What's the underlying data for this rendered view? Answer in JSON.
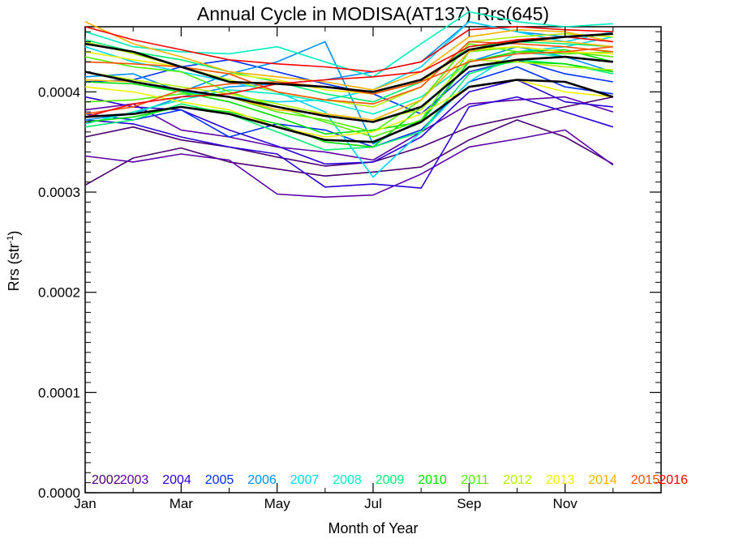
{
  "chart_data": {
    "type": "line",
    "title": "Annual Cycle in MODISA(AT137) Rrs(645)",
    "xlabel": "Month of Year",
    "ylabel_main": "Rrs (str",
    "ylabel_sup": "-1",
    "ylabel_close": ")",
    "xlim": [
      1,
      13
    ],
    "ylim": [
      0.0,
      0.000465
    ],
    "x_ticks": [
      {
        "value": 1,
        "label": "Jan"
      },
      {
        "value": 3,
        "label": "Mar"
      },
      {
        "value": 5,
        "label": "May"
      },
      {
        "value": 7,
        "label": "Jul"
      },
      {
        "value": 9,
        "label": "Sep"
      },
      {
        "value": 11,
        "label": "Nov"
      }
    ],
    "y_ticks": [
      {
        "value": 0.0,
        "label": "0.0000"
      },
      {
        "value": 0.0001,
        "label": "0.0001"
      },
      {
        "value": 0.0002,
        "label": "0.0002"
      },
      {
        "value": 0.0003,
        "label": "0.0003"
      },
      {
        "value": 0.0004,
        "label": "0.0004"
      }
    ],
    "legend": [
      {
        "label": "2002",
        "color": "#4a0072"
      },
      {
        "label": "2003",
        "color": "#5b00a8"
      },
      {
        "label": "2004",
        "color": "#2a00d8"
      },
      {
        "label": "2005",
        "color": "#0030ff"
      },
      {
        "label": "2006",
        "color": "#0090ff"
      },
      {
        "label": "2007",
        "color": "#00d8ff"
      },
      {
        "label": "2008",
        "color": "#00f0c0"
      },
      {
        "label": "2009",
        "color": "#00f070"
      },
      {
        "label": "2010",
        "color": "#00e000"
      },
      {
        "label": "2011",
        "color": "#50f000"
      },
      {
        "label": "2012",
        "color": "#b0f000"
      },
      {
        "label": "2013",
        "color": "#f0f000"
      },
      {
        "label": "2014",
        "color": "#ffb000"
      },
      {
        "label": "2015",
        "color": "#ff5000"
      },
      {
        "label": "2016",
        "color": "#ff0000"
      }
    ],
    "series": [
      {
        "color": "#4a0072",
        "x": [
          1,
          2,
          3,
          4,
          5,
          6,
          7,
          8,
          9,
          10,
          11,
          12
        ],
        "values": [
          0.000307,
          0.000334,
          0.000344,
          0.00033,
          0.000323,
          0.000316,
          0.00032,
          0.000325,
          0.000352,
          0.000372,
          0.000355,
          0.000328
        ]
      },
      {
        "color": "#4a0072",
        "x": [
          1,
          2,
          3,
          4,
          5,
          6,
          7,
          8,
          9,
          10,
          11,
          12
        ],
        "values": [
          0.000355,
          0.000365,
          0.000352,
          0.000345,
          0.000335,
          0.000326,
          0.00033,
          0.000345,
          0.000365,
          0.000375,
          0.000385,
          0.000395
        ]
      },
      {
        "color": "#5b00a8",
        "x": [
          1,
          2,
          3,
          4,
          5,
          6,
          7,
          8,
          9,
          10,
          11,
          12
        ],
        "values": [
          0.000336,
          0.00033,
          0.000338,
          0.000332,
          0.000298,
          0.000295,
          0.000297,
          0.000318,
          0.000345,
          0.000353,
          0.000362,
          0.000327
        ]
      },
      {
        "color": "#5b00a8",
        "x": [
          1,
          2,
          3,
          4,
          5,
          6,
          7,
          8,
          9,
          10,
          11,
          12
        ],
        "values": [
          0.000382,
          0.000388,
          0.000362,
          0.000355,
          0.000345,
          0.00034,
          0.000332,
          0.00036,
          0.000388,
          0.000392,
          0.000395,
          0.00038
        ]
      },
      {
        "color": "#2a00d8",
        "x": [
          1,
          2,
          3,
          4,
          5,
          6,
          7,
          8,
          9,
          10,
          11,
          12
        ],
        "values": [
          0.000372,
          0.000368,
          0.000355,
          0.000345,
          0.000338,
          0.000305,
          0.000308,
          0.000304,
          0.000385,
          0.000395,
          0.00038,
          0.000365
        ]
      },
      {
        "color": "#2a00d8",
        "x": [
          1,
          2,
          3,
          4,
          5,
          6,
          7,
          8,
          9,
          10,
          11,
          12
        ],
        "values": [
          0.000395,
          0.000385,
          0.000382,
          0.000362,
          0.000346,
          0.000328,
          0.00033,
          0.000355,
          0.0004,
          0.000412,
          0.00039,
          0.000385
        ]
      },
      {
        "color": "#0030ff",
        "x": [
          1,
          2,
          3,
          4,
          5,
          6,
          7,
          8,
          9,
          10,
          11,
          12
        ],
        "values": [
          0.000378,
          0.000372,
          0.000382,
          0.000355,
          0.000368,
          0.000362,
          0.000345,
          0.000362,
          0.00041,
          0.000425,
          0.000405,
          0.000398
        ]
      },
      {
        "color": "#0030ff",
        "x": [
          1,
          2,
          3,
          4,
          5,
          6,
          7,
          8,
          9,
          10,
          11,
          12
        ],
        "values": [
          0.00041,
          0.000412,
          0.000425,
          0.000432,
          0.00042,
          0.000408,
          0.000398,
          0.000378,
          0.00042,
          0.000432,
          0.000418,
          0.00041
        ]
      },
      {
        "color": "#0090ff",
        "x": [
          1,
          2,
          3,
          4,
          5,
          6,
          7,
          8,
          9,
          10,
          11,
          12
        ],
        "values": [
          0.000415,
          0.000418,
          0.0004,
          0.000418,
          0.00043,
          0.00045,
          0.000348,
          0.000372,
          0.00043,
          0.000445,
          0.000435,
          0.00042
        ]
      },
      {
        "color": "#0090ff",
        "x": [
          1,
          2,
          3,
          4,
          5,
          6,
          7,
          8,
          9,
          10,
          11,
          12
        ],
        "values": [
          0.000372,
          0.000378,
          0.000395,
          0.000405,
          0.000408,
          0.000412,
          0.00042,
          0.00043,
          0.00047,
          0.00046,
          0.000455,
          0.00045
        ]
      },
      {
        "color": "#00d8ff",
        "x": [
          1,
          2,
          3,
          4,
          5,
          6,
          7,
          8,
          9,
          10,
          11,
          12
        ],
        "values": [
          0.000445,
          0.00043,
          0.00042,
          0.00041,
          0.0004,
          0.00038,
          0.000315,
          0.00036,
          0.00041,
          0.00044,
          0.000445,
          0.000455
        ]
      },
      {
        "color": "#00d8ff",
        "x": [
          1,
          2,
          3,
          4,
          5,
          6,
          7,
          8,
          9,
          10,
          11,
          12
        ],
        "values": [
          0.00042,
          0.00041,
          0.0004,
          0.000395,
          0.00039,
          0.000392,
          0.000402,
          0.000425,
          0.00047,
          0.00046,
          0.00045,
          0.00046
        ]
      },
      {
        "color": "#00f0c0",
        "x": [
          1,
          2,
          3,
          4,
          5,
          6,
          7,
          8,
          9,
          10,
          11,
          12
        ],
        "values": [
          0.00046,
          0.000445,
          0.00044,
          0.000438,
          0.000445,
          0.00043,
          0.000415,
          0.000448,
          0.00048,
          0.00047,
          0.000465,
          0.000468
        ]
      },
      {
        "color": "#00f0c0",
        "x": [
          1,
          2,
          3,
          4,
          5,
          6,
          7,
          8,
          9,
          10,
          11,
          12
        ],
        "values": [
          0.000368,
          0.00038,
          0.000392,
          0.000402,
          0.000398,
          0.00039,
          0.000378,
          0.000395,
          0.00043,
          0.00044,
          0.000435,
          0.00043
        ]
      },
      {
        "color": "#00f070",
        "x": [
          1,
          2,
          3,
          4,
          5,
          6,
          7,
          8,
          9,
          10,
          11,
          12
        ],
        "values": [
          0.000365,
          0.000372,
          0.000388,
          0.000378,
          0.00036,
          0.000342,
          0.000345,
          0.00036,
          0.000418,
          0.000432,
          0.000428,
          0.000418
        ]
      },
      {
        "color": "#00f070",
        "x": [
          1,
          2,
          3,
          4,
          5,
          6,
          7,
          8,
          9,
          10,
          11,
          12
        ],
        "values": [
          0.000452,
          0.00044,
          0.000432,
          0.00042,
          0.00041,
          0.000398,
          0.00039,
          0.00041,
          0.000445,
          0.00045,
          0.000448,
          0.000445
        ]
      },
      {
        "color": "#00e000",
        "x": [
          1,
          2,
          3,
          4,
          5,
          6,
          7,
          8,
          9,
          10,
          11,
          12
        ],
        "values": [
          0.00037,
          0.000375,
          0.000385,
          0.00038,
          0.000368,
          0.00035,
          0.000345,
          0.000385,
          0.000425,
          0.00043,
          0.000428,
          0.00042
        ]
      },
      {
        "color": "#00e000",
        "x": [
          1,
          2,
          3,
          4,
          5,
          6,
          7,
          8,
          9,
          10,
          11,
          12
        ],
        "values": [
          0.00041,
          0.000408,
          0.0004,
          0.00039,
          0.000375,
          0.000358,
          0.000362,
          0.00037,
          0.00043,
          0.00044,
          0.000442,
          0.00043
        ]
      },
      {
        "color": "#50f000",
        "x": [
          1,
          2,
          3,
          4,
          5,
          6,
          7,
          8,
          9,
          10,
          11,
          12
        ],
        "values": [
          0.000435,
          0.000425,
          0.00042,
          0.0004,
          0.000385,
          0.00037,
          0.000355,
          0.000372,
          0.00044,
          0.000445,
          0.00044,
          0.000435
        ]
      },
      {
        "color": "#50f000",
        "x": [
          1,
          2,
          3,
          4,
          5,
          6,
          7,
          8,
          9,
          10,
          11,
          12
        ],
        "values": [
          0.00039,
          0.000392,
          0.000398,
          0.000395,
          0.00038,
          0.000372,
          0.00036,
          0.000392,
          0.000448,
          0.00044,
          0.000438,
          0.00044
        ]
      },
      {
        "color": "#b0f000",
        "x": [
          1,
          2,
          3,
          4,
          5,
          6,
          7,
          8,
          9,
          10,
          11,
          12
        ],
        "values": [
          0.00042,
          0.000412,
          0.000405,
          0.000398,
          0.000388,
          0.000378,
          0.000372,
          0.000382,
          0.000432,
          0.00043,
          0.000425,
          0.000422
        ]
      },
      {
        "color": "#b0f000",
        "x": [
          1,
          2,
          3,
          4,
          5,
          6,
          7,
          8,
          9,
          10,
          11,
          12
        ],
        "values": [
          0.00045,
          0.000438,
          0.000425,
          0.000412,
          0.0004,
          0.000392,
          0.000385,
          0.000405,
          0.00045,
          0.000455,
          0.000458,
          0.000455
        ]
      },
      {
        "color": "#f0f000",
        "x": [
          1,
          2,
          3,
          4,
          5,
          6,
          7,
          8,
          9,
          10,
          11,
          12
        ],
        "values": [
          0.000405,
          0.0004,
          0.00039,
          0.000382,
          0.000365,
          0.000355,
          0.00036,
          0.000378,
          0.000405,
          0.000412,
          0.0004,
          0.000395
        ]
      },
      {
        "color": "#f0f000",
        "x": [
          1,
          2,
          3,
          4,
          5,
          6,
          7,
          8,
          9,
          10,
          11,
          12
        ],
        "values": [
          0.00044,
          0.000432,
          0.000425,
          0.000418,
          0.000412,
          0.000402,
          0.000398,
          0.00041,
          0.000442,
          0.000445,
          0.00044,
          0.000438
        ]
      },
      {
        "color": "#ffb000",
        "x": [
          1,
          2,
          3,
          4,
          5,
          6,
          7,
          8,
          9,
          10,
          11,
          12
        ],
        "values": [
          0.00047,
          0.000448,
          0.000435,
          0.00042,
          0.000415,
          0.00041,
          0.000402,
          0.00042,
          0.000455,
          0.000462,
          0.00046,
          0.00045
        ]
      },
      {
        "color": "#ffb000",
        "x": [
          1,
          2,
          3,
          4,
          5,
          6,
          7,
          8,
          9,
          10,
          11,
          12
        ],
        "values": [
          0.000412,
          0.00041,
          0.000402,
          0.000395,
          0.000382,
          0.000378,
          0.000372,
          0.000392,
          0.00044,
          0.000452,
          0.00045,
          0.000445
        ]
      },
      {
        "color": "#ff5000",
        "x": [
          1,
          2,
          3,
          4,
          5,
          6,
          7,
          8,
          9,
          10,
          11,
          12
        ],
        "values": [
          0.00043,
          0.000428,
          0.000425,
          0.000418,
          0.0004,
          0.000392,
          0.000388,
          0.000405,
          0.00045,
          0.000448,
          0.000445,
          0.00044
        ]
      },
      {
        "color": "#ff5000",
        "x": [
          1,
          2,
          3,
          4,
          5,
          6,
          7,
          8,
          9,
          10,
          11,
          12
        ],
        "values": [
          0.000378,
          0.000385,
          0.000402,
          0.000408,
          0.00041,
          0.000405,
          0.000398,
          0.00041,
          0.00043,
          0.000438,
          0.00044,
          0.000445
        ]
      },
      {
        "color": "#ff0000",
        "x": [
          1,
          2,
          3,
          4,
          5,
          6,
          7,
          8,
          9,
          10,
          11,
          12
        ],
        "values": [
          0.000465,
          0.000452,
          0.000442,
          0.000432,
          0.000428,
          0.000425,
          0.00042,
          0.00043,
          0.000462,
          0.000465,
          0.000462,
          0.00046
        ]
      },
      {
        "color": "#ff0000",
        "x": [
          1,
          2,
          3,
          4,
          5,
          6,
          7,
          8,
          9,
          10,
          11,
          12
        ],
        "values": [
          0.000375,
          0.000388,
          0.000395,
          0.000398,
          0.000408,
          0.000412,
          0.000415,
          0.00042,
          0.000445,
          0.000452,
          0.000455,
          0.00045
        ]
      },
      {
        "color": "#000000",
        "x": [
          1,
          2,
          3,
          4,
          5,
          6,
          7,
          8,
          9,
          10,
          11,
          12
        ],
        "values": [
          0.00042,
          0.00041,
          0.000402,
          0.000395,
          0.000385,
          0.000376,
          0.00037,
          0.000385,
          0.000425,
          0.000432,
          0.000435,
          0.00043
        ]
      },
      {
        "color": "#000000",
        "x": [
          1,
          2,
          3,
          4,
          5,
          6,
          7,
          8,
          9,
          10,
          11,
          12
        ],
        "values": [
          0.000448,
          0.00044,
          0.000425,
          0.00041,
          0.000408,
          0.000405,
          0.0004,
          0.000412,
          0.000442,
          0.00045,
          0.000455,
          0.000458
        ]
      },
      {
        "color": "#000000",
        "x": [
          1,
          2,
          3,
          4,
          5,
          6,
          7,
          8,
          9,
          10,
          11,
          12
        ],
        "values": [
          0.000375,
          0.000378,
          0.000385,
          0.000378,
          0.000365,
          0.000352,
          0.00035,
          0.00037,
          0.000405,
          0.000412,
          0.00041,
          0.000395
        ]
      }
    ]
  }
}
